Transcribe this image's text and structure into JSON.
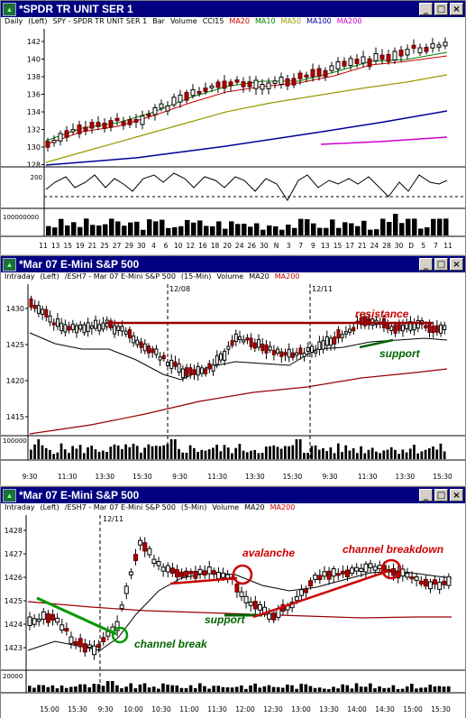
{
  "colors": {
    "titlebar": "#000080",
    "ma_red": "#cc0000",
    "ma_green": "#008000",
    "ma_olive": "#999900",
    "ma_blue": "#000099",
    "ma_magenta": "#cc00cc",
    "ma_darkred": "#990000",
    "annot_red": "#cc0000",
    "annot_green": "#006600"
  },
  "window1": {
    "title": "*SPDR TR UNIT SER 1",
    "info": {
      "interval": "Daily",
      "scale": "(Left)",
      "symbol": "SPY - SPDR TR UNIT SER 1",
      "bar": "Bar",
      "volume": "Volume",
      "cci": "CCI15",
      "ma20": "MA20",
      "ma10": "MA10",
      "ma50": "MA50",
      "ma100": "MA100",
      "ma200": "MA200"
    },
    "price_ticks": [
      "142",
      "140",
      "138",
      "136",
      "134",
      "132",
      "130",
      "128"
    ],
    "cci_tick": "200",
    "vol_tick": "100000000",
    "x_labels": [
      "11",
      "13",
      "15",
      "19",
      "21",
      "25",
      "27",
      "29",
      "30",
      "4",
      "6",
      "10",
      "12",
      "16",
      "18",
      "20",
      "24",
      "26",
      "30",
      "N",
      "3",
      "7",
      "9",
      "13",
      "15",
      "17",
      "21",
      "24",
      "28",
      "30",
      "D",
      "5",
      "7",
      "11"
    ]
  },
  "window2": {
    "title": "*Mar 07  E-Mini S&P 500",
    "info": {
      "interval": "Intraday",
      "scale": "(Left)",
      "symbol": "/ESH7 - Mar 07  E-Mini S&P 500",
      "bar": "(15-Min)",
      "volume": "Volume",
      "ma20": "MA20",
      "ma200": "MA200"
    },
    "date_markers": [
      "12/08",
      "12/11"
    ],
    "price_ticks": [
      "1430",
      "1425",
      "1420",
      "1415"
    ],
    "vol_tick": "100000",
    "x_labels": [
      "9:30",
      "11:30",
      "13:30",
      "15:30",
      "9:30",
      "11:30",
      "13:30",
      "15:30",
      "9:30",
      "11:30",
      "13:30",
      "15:30"
    ],
    "annotations": {
      "resistance": "resistance",
      "support": "support"
    }
  },
  "window3": {
    "title": "*Mar 07  E-Mini S&P 500",
    "info": {
      "interval": "Intraday",
      "scale": "(Left)",
      "symbol": "/ESH7 - Mar 07  E-Mini S&P 500",
      "bar": "(5-Min)",
      "volume": "Volume",
      "ma20": "MA20",
      "ma200": "MA200"
    },
    "date_marker": "12/11",
    "price_ticks": [
      "1428",
      "1427",
      "1426",
      "1425",
      "1424",
      "1423"
    ],
    "vol_tick": "20000",
    "x_labels": [
      "15:00",
      "15:30",
      "9:30",
      "10:00",
      "10:30",
      "11:00",
      "11:30",
      "12:00",
      "12:30",
      "13:00",
      "13:30",
      "14:00",
      "14:30",
      "15:00",
      "15:30"
    ],
    "annotations": {
      "avalanche": "avalanche",
      "channel_breakdown": "channel breakdown",
      "support": "support",
      "channel_break": "channel break"
    }
  }
}
